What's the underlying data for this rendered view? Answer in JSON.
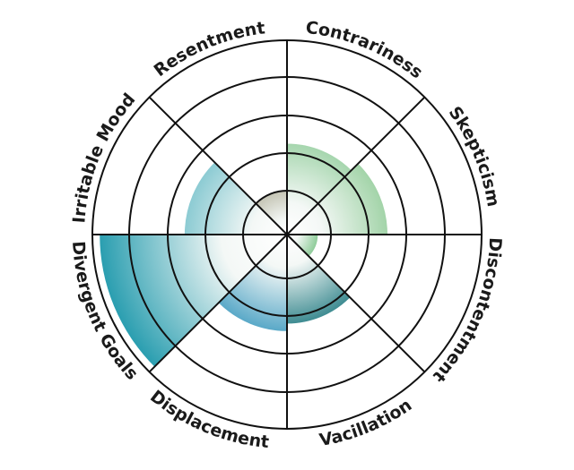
{
  "chart_data": {
    "type": "polar-area",
    "title": "",
    "rings": 5,
    "rlim": [
      0,
      5
    ],
    "grid": true,
    "categories": [
      "Contrariness",
      "Skepticism",
      "Discontentment",
      "Vacillation",
      "Displacement",
      "Divergent Goals",
      "Irritable Mood",
      "Resentment"
    ],
    "values": [
      2.25,
      2.5,
      0.7,
      2.2,
      2.4,
      4.8,
      2.55,
      1.0
    ],
    "colors": [
      "#a6d6ae",
      "#a3d4a9",
      "#8fcc9a",
      "#3f8c92",
      "#5aa9c8",
      "#2a9eb0",
      "#8ccbd3",
      "#c4c4b4"
    ]
  }
}
